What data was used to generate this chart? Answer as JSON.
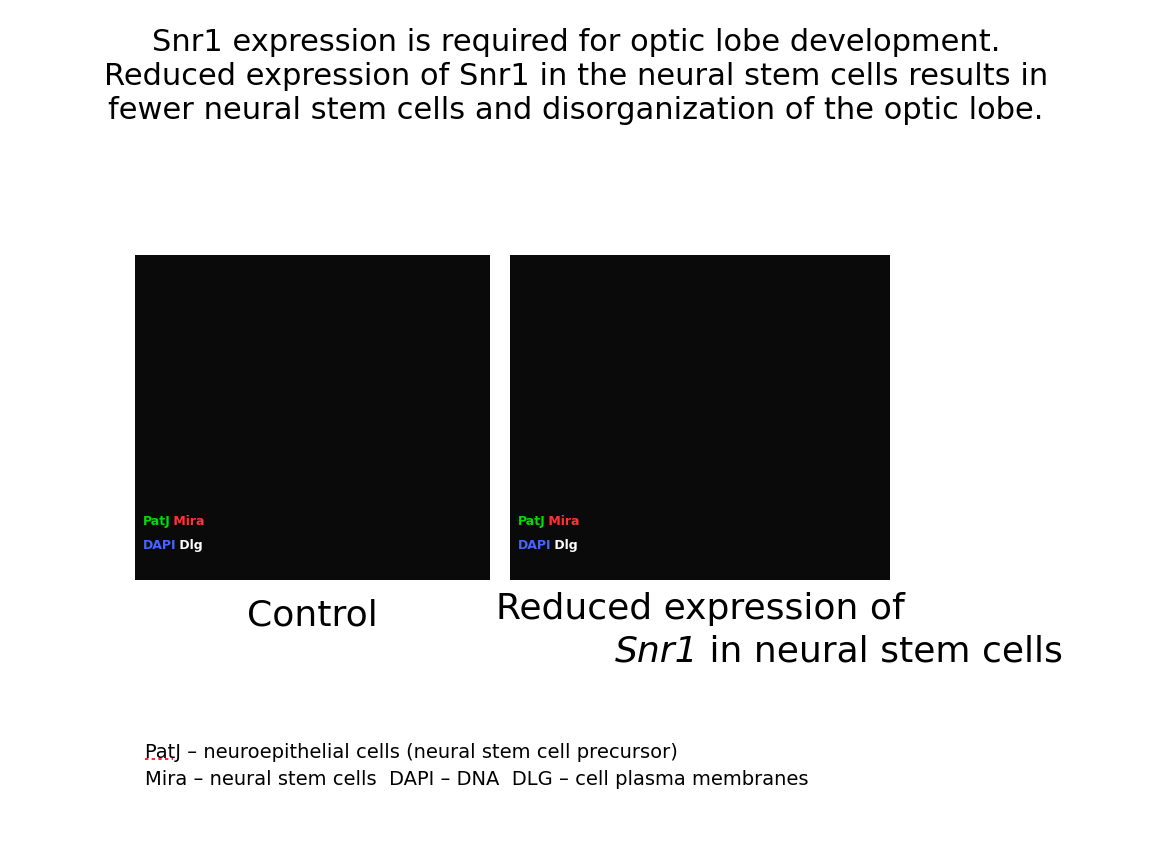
{
  "background_color": "#ffffff",
  "title_lines": [
    "Snr1 expression is required for optic lobe development.",
    "Reduced expression of Snr1 in the neural stem cells results in",
    "fewer neural stem cells and disorganization of the optic lobe."
  ],
  "title_fontsize": 22,
  "label_left": "Control",
  "label_right_line1": "Reduced expression of",
  "label_right_line2_italic": "Snr1",
  "label_right_line2_normal": " in neural stem cells",
  "label_fontsize": 26,
  "img_label_patj": "PatJ",
  "img_label_mira": " Mira",
  "img_label_dapi": "DAPI",
  "img_label_dlg": " Dlg",
  "img_label_fontsize": 9,
  "patj_color": "#00dd00",
  "mira_color": "#ff3333",
  "dapi_color": "#4466ff",
  "dlg_color": "#ffffff",
  "legend_line1_underlined": "PatJ",
  "legend_line1_rest": " – neuroepithelial cells (neural stem cell precursor)",
  "legend_line2": "Mira – neural stem cells  DAPI – DNA  DLG – cell plasma membranes",
  "legend_fontsize": 14
}
